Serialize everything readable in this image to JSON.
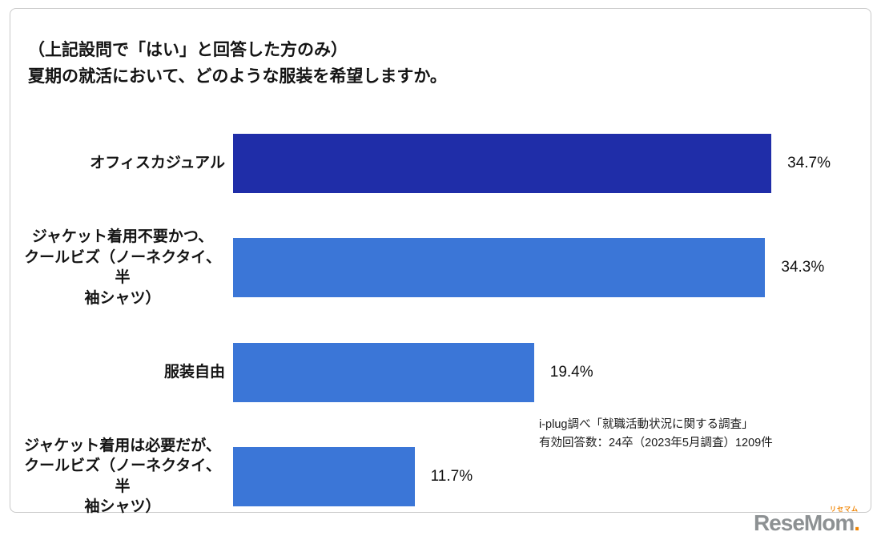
{
  "title": {
    "line1": "（上記設問で「はい」と回答した方のみ）",
    "line2": "夏期の就活において、どのような服装を希望しますか。"
  },
  "chart_data": {
    "type": "bar",
    "orientation": "horizontal",
    "categories": [
      "オフィスカジュアル",
      "ジャケット着用不要かつ、\nクールビズ（ノーネクタイ、半\n袖シャツ）",
      "服装自由",
      "ジャケット着用は必要だが、\nクールビズ（ノーネクタイ、半\n袖シャツ）"
    ],
    "values": [
      34.7,
      34.3,
      19.4,
      11.7
    ],
    "value_labels": [
      "34.7%",
      "34.3%",
      "19.4%",
      "11.7%"
    ],
    "bar_colors": [
      "#1F2DA8",
      "#3B76D7",
      "#3B76D7",
      "#3B76D7"
    ],
    "xlim": [
      0,
      40
    ],
    "grid": false,
    "legend": false,
    "title": "夏期の就活において、どのような服装を希望しますか。"
  },
  "source": {
    "line1": "i-plug調べ「就職活動状況に関する調査」",
    "line2": "有効回答数：24卒（2023年5月調査）1209件"
  },
  "logo": {
    "text": "ReseMom",
    "katakana": "リセマム",
    "period": ".",
    "text_color": "#8D9193",
    "accent_color": "#F08300"
  }
}
